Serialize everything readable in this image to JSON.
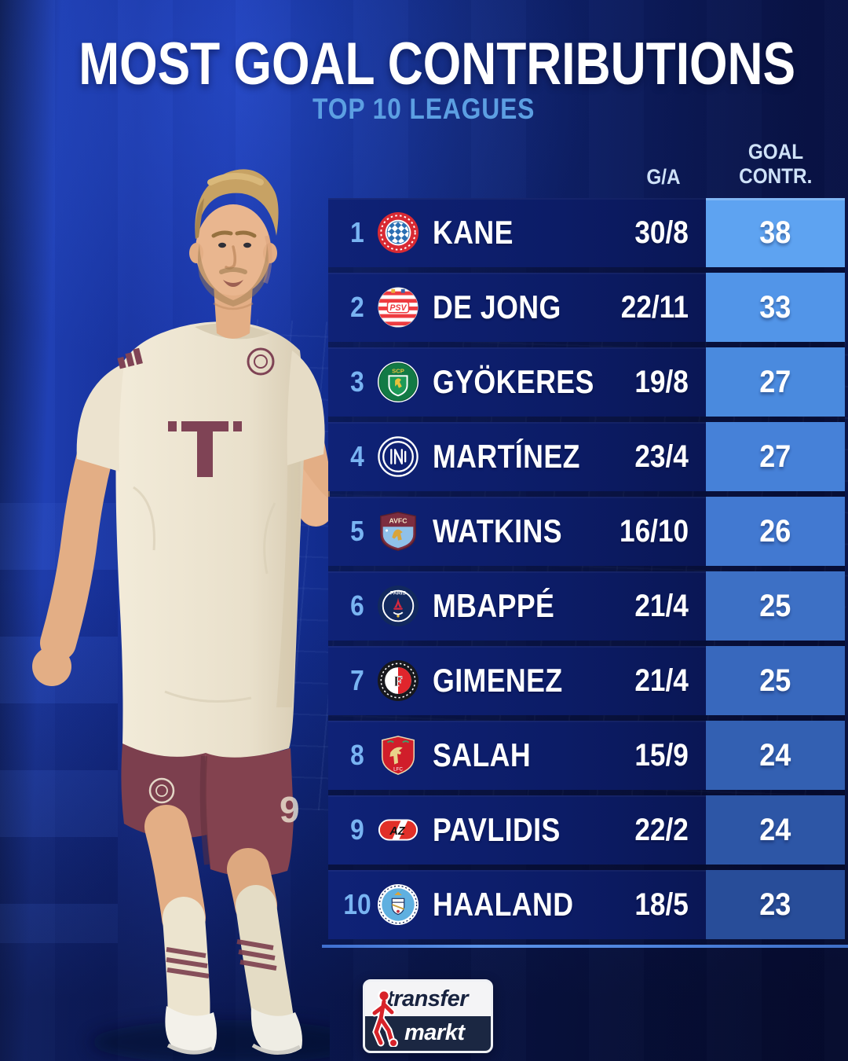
{
  "title": "MOST GOAL CONTRIBUTIONS",
  "subtitle": "TOP 10 LEAGUES",
  "table": {
    "header_ga": "G/A",
    "header_contrib": [
      "GOAL",
      "CONTR."
    ],
    "rows": [
      {
        "rank": "1",
        "player": "KANE",
        "club_badge": "bayern-munich-badge",
        "ga": "30/8",
        "contrib": "38",
        "contrib_color": "#5ea3f1"
      },
      {
        "rank": "2",
        "player": "DE JONG",
        "club_badge": "psv-eindhoven-badge",
        "ga": "22/11",
        "contrib": "33",
        "contrib_color": "#5295e8"
      },
      {
        "rank": "3",
        "player": "GYÖKERES",
        "club_badge": "sporting-cp-badge",
        "ga": "19/8",
        "contrib": "27",
        "contrib_color": "#4a8ade"
      },
      {
        "rank": "4",
        "player": "MARTÍNEZ",
        "club_badge": "inter-milan-badge",
        "ga": "23/4",
        "contrib": "27",
        "contrib_color": "#4681d8"
      },
      {
        "rank": "5",
        "player": "WATKINS",
        "club_badge": "aston-villa-badge",
        "ga": "16/10",
        "contrib": "26",
        "contrib_color": "#4279d1"
      },
      {
        "rank": "6",
        "player": "MBAPPÉ",
        "club_badge": "psg-badge",
        "ga": "21/4",
        "contrib": "25",
        "contrib_color": "#3d70c5"
      },
      {
        "rank": "7",
        "player": "GIMENEZ",
        "club_badge": "feyenoord-badge",
        "ga": "21/4",
        "contrib": "25",
        "contrib_color": "#3868bd"
      },
      {
        "rank": "8",
        "player": "SALAH",
        "club_badge": "liverpool-badge",
        "ga": "15/9",
        "contrib": "24",
        "contrib_color": "#3360b2"
      },
      {
        "rank": "9",
        "player": "PAVLIDIS",
        "club_badge": "az-alkmaar-badge",
        "ga": "22/2",
        "contrib": "24",
        "contrib_color": "#2d56a6"
      },
      {
        "rank": "10",
        "player": "HAALAND",
        "club_badge": "manchester-city-badge",
        "ga": "18/5",
        "contrib": "23",
        "contrib_color": "#284d99"
      }
    ]
  },
  "footer": {
    "logo_line1": "transfer",
    "logo_line2": "markt"
  }
}
